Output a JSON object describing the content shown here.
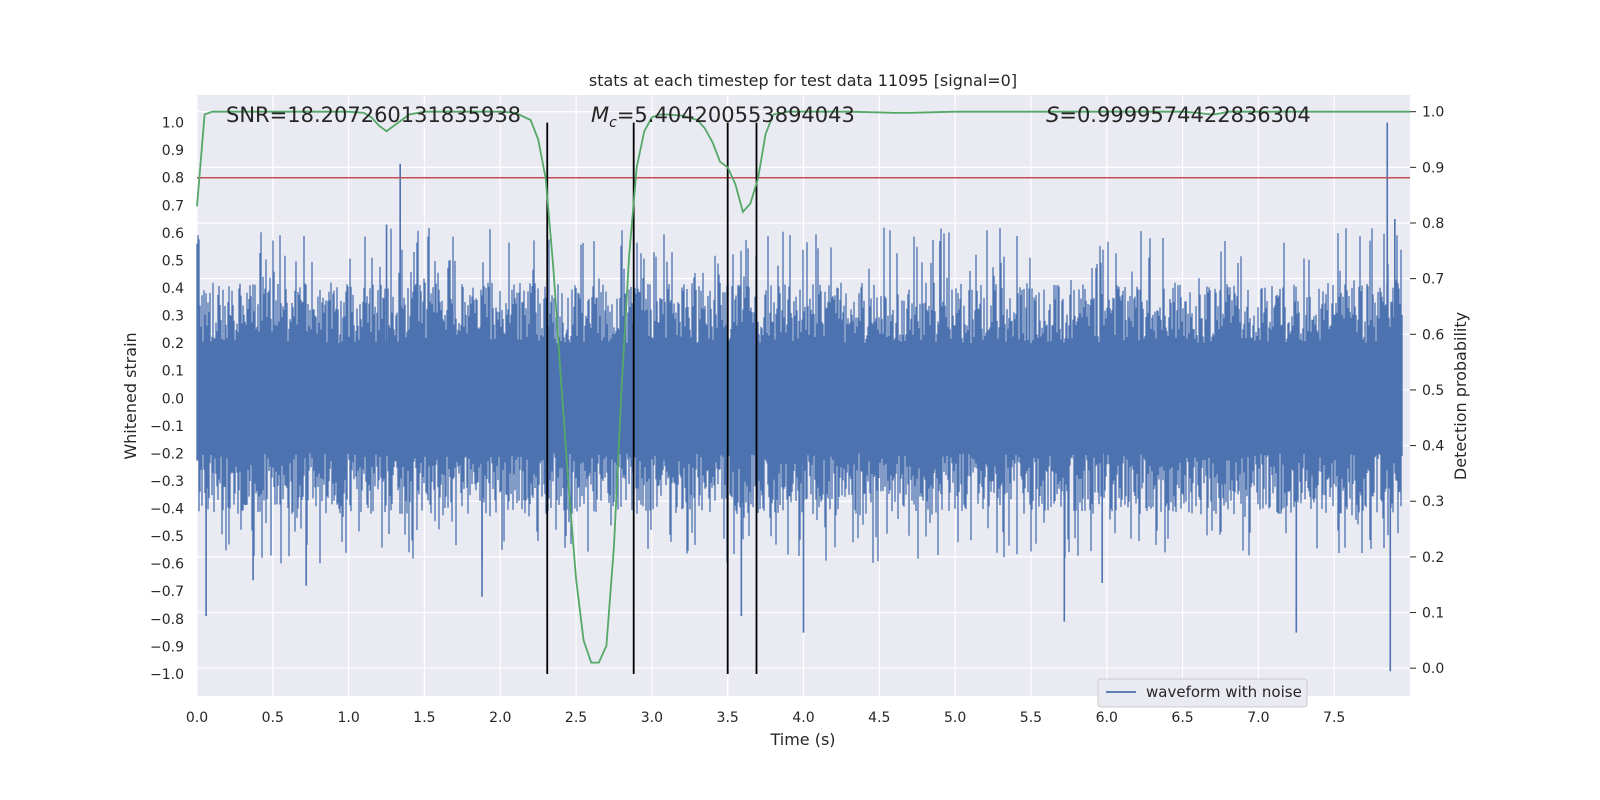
{
  "chart_data": {
    "type": "line",
    "title": "stats at each timestep for test data 11095 [signal=0]",
    "xlabel": "Time (s)",
    "ylabel": "Whitened strain",
    "y2label": "Detection probability",
    "xlim": [
      0.0,
      8.0
    ],
    "ylim": [
      -1.08,
      1.1
    ],
    "y2lim": [
      -0.05,
      1.03
    ],
    "xticks": [
      0.0,
      0.5,
      1.0,
      1.5,
      2.0,
      2.5,
      3.0,
      3.5,
      4.0,
      4.5,
      5.0,
      5.5,
      6.0,
      6.5,
      7.0,
      7.5
    ],
    "xtick_labels": [
      "0.0",
      "0.5",
      "1.0",
      "1.5",
      "2.0",
      "2.5",
      "3.0",
      "3.5",
      "4.0",
      "4.5",
      "5.0",
      "5.5",
      "6.0",
      "6.5",
      "7.0",
      "7.5"
    ],
    "yticks": [
      1.0,
      0.9,
      0.8,
      0.7,
      0.6,
      0.5,
      0.4,
      0.3,
      0.2,
      0.1,
      0.0,
      -0.1,
      -0.2,
      -0.3,
      -0.4,
      -0.5,
      -0.6,
      -0.7,
      -0.8,
      -0.9,
      -1.0
    ],
    "ytick_labels": [
      "1.0",
      "0.9",
      "0.8",
      "0.7",
      "0.6",
      "0.5",
      "0.4",
      "0.3",
      "0.2",
      "0.1",
      "0.0",
      "−0.1",
      "−0.2",
      "−0.3",
      "−0.4",
      "−0.5",
      "−0.6",
      "−0.7",
      "−0.8",
      "−0.9",
      "−1.0"
    ],
    "y2ticks": [
      1.0,
      0.9,
      0.8,
      0.7,
      0.6,
      0.5,
      0.4,
      0.3,
      0.2,
      0.1,
      0.0
    ],
    "y2tick_labels": [
      "1.0",
      "0.9",
      "0.8",
      "0.7",
      "0.6",
      "0.5",
      "0.4",
      "0.3",
      "0.2",
      "0.1",
      "0.0"
    ],
    "annotations": {
      "snr": "SNR=18.207260131835938",
      "mc_symbol": "M",
      "mc_sub": "c",
      "mc_value": "=5.404200553894043",
      "s_symbol": "S",
      "s_value": "=0.9999574422836304"
    },
    "threshold_y": 0.8,
    "vlines_x": [
      2.31,
      2.88,
      3.5,
      3.69
    ],
    "vlines_ymin": -1.0,
    "vlines_ymax": 1.0,
    "legend": [
      "waveform with noise"
    ],
    "legend_position": "lower-right",
    "series": [
      {
        "name": "waveform with noise",
        "color": "#4c72b0",
        "description": "noisy whitened strain, core band about ±0.2 with spikes to ±0.65",
        "spikes": [
          [
            1.34,
            0.85
          ],
          [
            7.85,
            1.0
          ],
          [
            7.87,
            -0.99
          ],
          [
            0.06,
            -0.79
          ],
          [
            0.37,
            -0.66
          ],
          [
            0.72,
            -0.68
          ],
          [
            1.88,
            -0.72
          ],
          [
            3.59,
            -0.79
          ],
          [
            4.0,
            -0.85
          ],
          [
            5.72,
            -0.81
          ],
          [
            7.25,
            -0.85
          ],
          [
            1.25,
            0.63
          ],
          [
            4.9,
            0.57
          ],
          [
            7.9,
            0.65
          ],
          [
            5.97,
            -0.67
          ]
        ]
      },
      {
        "name": "detection probability",
        "color": "#55a868",
        "axis": "right",
        "x": [
          0.0,
          0.05,
          0.1,
          0.2,
          0.3,
          0.5,
          0.8,
          1.0,
          1.1,
          1.15,
          1.2,
          1.25,
          1.3,
          1.4,
          1.5,
          1.7,
          1.9,
          2.0,
          2.1,
          2.2,
          2.25,
          2.3,
          2.35,
          2.4,
          2.45,
          2.5,
          2.55,
          2.6,
          2.65,
          2.7,
          2.75,
          2.8,
          2.85,
          2.9,
          2.95,
          3.0,
          3.05,
          3.1,
          3.2,
          3.3,
          3.35,
          3.4,
          3.45,
          3.5,
          3.55,
          3.6,
          3.65,
          3.7,
          3.75,
          3.8,
          3.9,
          4.0,
          4.3,
          4.6,
          4.7,
          5.0,
          5.5,
          6.0,
          6.5,
          6.6,
          6.65,
          6.7,
          6.75,
          6.8,
          7.0,
          7.5,
          8.0
        ],
        "values": [
          0.83,
          0.995,
          1.0,
          1.0,
          1.0,
          1.0,
          1.0,
          1.0,
          0.998,
          0.99,
          0.975,
          0.965,
          0.975,
          0.995,
          1.0,
          1.0,
          1.0,
          1.0,
          0.998,
          0.985,
          0.95,
          0.88,
          0.72,
          0.52,
          0.33,
          0.16,
          0.05,
          0.01,
          0.01,
          0.04,
          0.22,
          0.5,
          0.74,
          0.9,
          0.965,
          0.99,
          0.995,
          0.995,
          0.993,
          0.985,
          0.97,
          0.945,
          0.91,
          0.9,
          0.87,
          0.82,
          0.835,
          0.88,
          0.96,
          0.995,
          1.0,
          1.0,
          1.0,
          0.998,
          0.998,
          1.0,
          1.0,
          1.0,
          1.0,
          0.998,
          0.996,
          0.995,
          0.997,
          1.0,
          1.0,
          1.0,
          1.0
        ]
      }
    ]
  }
}
